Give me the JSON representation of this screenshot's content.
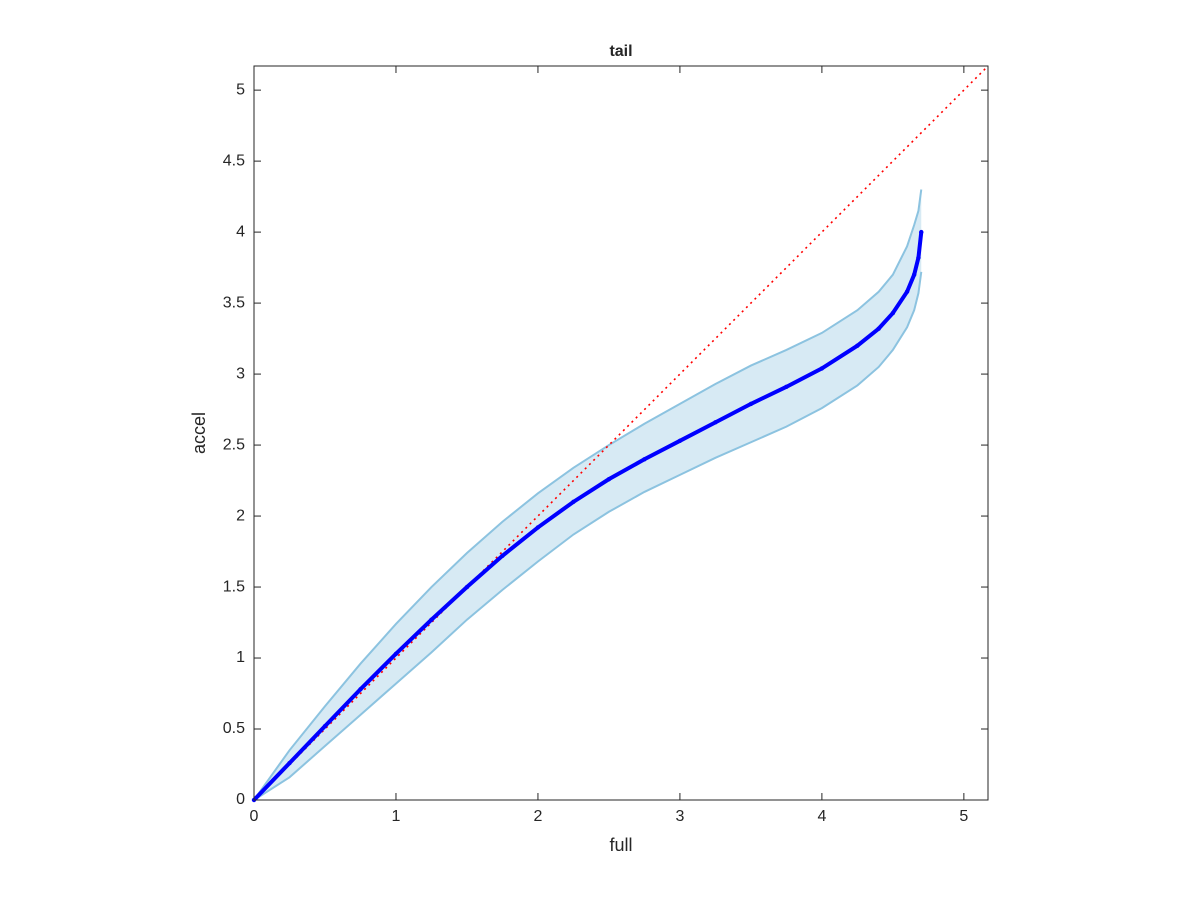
{
  "chart_data": {
    "type": "line",
    "title": "tail",
    "x_label": "full",
    "y_label": "accel",
    "x": [
      0,
      0.25,
      0.5,
      0.75,
      1,
      1.25,
      1.5,
      1.75,
      2,
      2.25,
      2.5,
      2.75,
      3,
      3.25,
      3.5,
      3.75,
      4,
      4.25,
      4.4,
      4.5,
      4.6,
      4.65,
      4.68,
      4.7
    ],
    "series": [
      {
        "color": "#0000ff",
        "values": [
          0,
          0.26,
          0.52,
          0.78,
          1.03,
          1.27,
          1.5,
          1.72,
          1.92,
          2.1,
          2.26,
          2.4,
          2.53,
          2.66,
          2.79,
          2.91,
          3.04,
          3.2,
          3.32,
          3.43,
          3.58,
          3.7,
          3.82,
          4.0
        ]
      }
    ],
    "band": {
      "color": "#8cc3e0",
      "upper": [
        0,
        0.35,
        0.66,
        0.96,
        1.24,
        1.5,
        1.74,
        1.96,
        2.16,
        2.34,
        2.5,
        2.65,
        2.79,
        2.93,
        3.06,
        3.17,
        3.29,
        3.45,
        3.58,
        3.7,
        3.9,
        4.05,
        4.15,
        4.3
      ],
      "lower": [
        0,
        0.16,
        0.38,
        0.6,
        0.82,
        1.04,
        1.27,
        1.48,
        1.68,
        1.87,
        2.03,
        2.17,
        2.29,
        2.41,
        2.52,
        2.63,
        2.76,
        2.92,
        3.05,
        3.17,
        3.33,
        3.45,
        3.57,
        3.72
      ]
    },
    "reference_line": {
      "color": "#ff0000",
      "x": [
        0,
        5.17
      ],
      "y": [
        0,
        5.17
      ]
    },
    "xlim": [
      0,
      5.17
    ],
    "ylim": [
      0,
      5.17
    ],
    "xticks": [
      0,
      1,
      2,
      3,
      4,
      5
    ],
    "yticks": [
      0,
      0.5,
      1,
      1.5,
      2,
      2.5,
      3,
      3.5,
      4,
      4.5,
      5
    ]
  }
}
